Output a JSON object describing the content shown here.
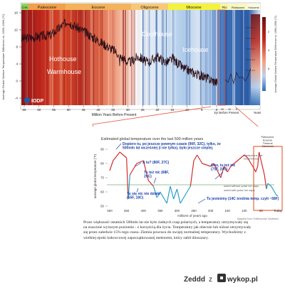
{
  "top_chart": {
    "eras": [
      "Cret.",
      "Paleocene",
      "Eocene",
      "Oligocene",
      "Miocene",
      "Plio",
      "Pleistocene",
      "Holocene",
      "Future"
    ],
    "left_axis_label": "Average Global Surface Temperature\nDifference vs. 1960–1990 (°C)",
    "right_axis_label": "Average Global Surface Temperature\nDifference vs. 1960–1990 (°C)",
    "left_ticks": [
      "16",
      "12",
      "8",
      "4",
      "0",
      "-4"
    ],
    "right_ticks": [
      "2",
      "4",
      "6"
    ],
    "x_label_main": "Million Years Before Present",
    "x_label_zoom": "kyr Before Present",
    "x_label_future": "Years",
    "x_ticks": [
      "66",
      "60",
      "55",
      "50",
      "45",
      "40",
      "35",
      "30",
      "25",
      "20",
      "15",
      "10",
      "5",
      "0"
    ],
    "zoom_ticks": [
      "20",
      "10",
      "0"
    ],
    "labels": [
      "Hothouse",
      "Warmhouse",
      "Coolhouse",
      "Icehouse"
    ],
    "scenarios": [
      "SSP5-8.5",
      "SSP3-7.0",
      "SSP2-4.5",
      "SSP1-2.6",
      "SSP1-1.9"
    ],
    "logo": "IODP",
    "colors": {
      "hot": "#c0281c",
      "warm": "#e8866a",
      "cool": "#b9d3ee",
      "cold": "#2f6db5",
      "line": "#2b0f16",
      "era_green": "#8cd25c",
      "era_yellow": "#f3f23c"
    }
  },
  "bottom_chart": {
    "title": "Estimated global temperature over the last 500 million years",
    "ylabel": "average global temperature (°F)",
    "xlabel": "millions of years ago",
    "x_ticks": [
      "500",
      "450",
      "400",
      "350",
      "300",
      "250",
      "200",
      "150",
      "100",
      "50",
      "Today"
    ],
    "y_ticks": [
      "90",
      "80",
      "70",
      "60",
      "50"
    ],
    "annotations": [
      "Dopiero tu, po jeszcze pewnym czasie (90F, 32C), tylko, że 500mln lat wcześniej (i nie tylko), było jeszcze cieplej.",
      "A tu? (80F, 27C)",
      "Tu też nic (68F, 20C)",
      "Ooo, tu też nic (75F, 24C)",
      "Tu się nic nie działo (65F, 18C)",
      "Tu jesteśmy (14C średnia temp. czyli ~58F)"
    ],
    "legend": [
      "world without polar ice caps",
      "world with polar ice caps"
    ],
    "side_labels": [
      "Cretaceous Hot Greenhouse",
      "Paleocene Eocene Thermal Maximum"
    ],
    "credit": "Adapted from Smithsonian Institution",
    "colors": {
      "hot": "#d42b2b",
      "cold": "#29a0c8",
      "ref": "#2e8b2e",
      "box": "#e24a1a",
      "annot": "#1a3ea8"
    }
  },
  "paragraph": [
    "Przez większość ostatnich 500mln lat nie było żadnych czap polarnych, a temperatury utrzymywały się",
    "na znacznie wyższym poziomie - z korzyścią dla życia. Temperatury jak obecnie lub niższe utrzymywały",
    "się przez zaledwie 15% tego czasu. Ziemia powraca do swojej normalnej temperatury. Wychodzimy z",
    "wielkiej epoki lodowcowej zapoczątkowanej meteorem, który zabił dinozaury."
  ],
  "footer": {
    "user": "Zeddd",
    "separator": "z",
    "site": "wykop.pl"
  }
}
